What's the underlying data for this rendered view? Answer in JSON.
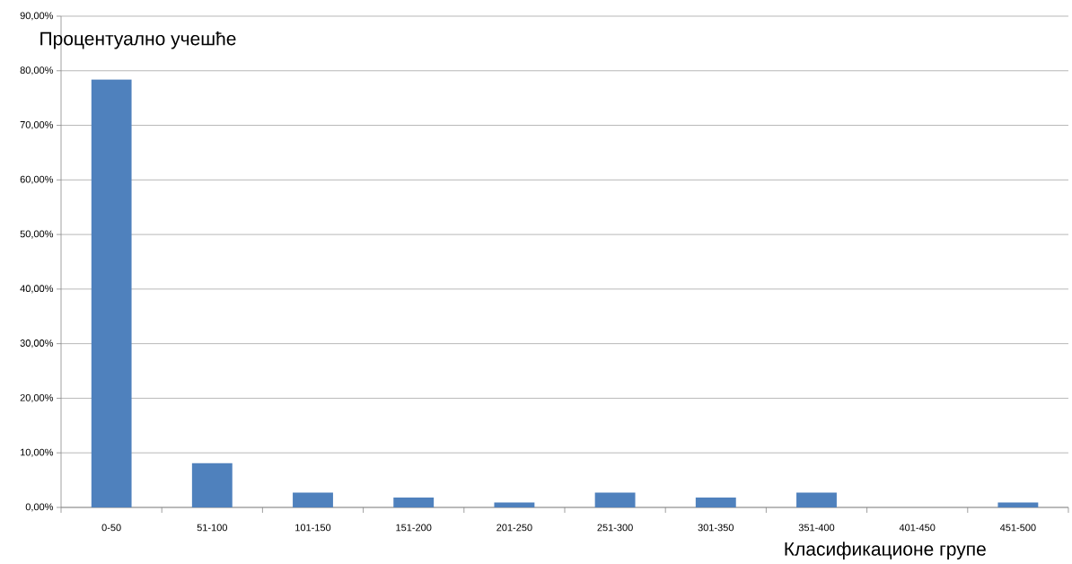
{
  "chart_data": {
    "type": "bar",
    "ylabel": "Процентуално учешће",
    "xlabel": "Класификационе групе",
    "categories": [
      "0-50",
      "51-100",
      "101-150",
      "151-200",
      "201-250",
      "251-300",
      "301-350",
      "351-400",
      "401-450",
      "451-500"
    ],
    "values": [
      78.4,
      8.1,
      2.7,
      1.8,
      0.9,
      2.7,
      1.8,
      2.7,
      0,
      0.9
    ],
    "color": "#4f81bd",
    "ylim": [
      0,
      90
    ],
    "yticks": [
      {
        "value": 0,
        "label": "0,00%"
      },
      {
        "value": 10,
        "label": "10,00%"
      },
      {
        "value": 20,
        "label": "20,00%"
      },
      {
        "value": 30,
        "label": "30,00%"
      },
      {
        "value": 40,
        "label": "40,00%"
      },
      {
        "value": 50,
        "label": "50,00%"
      },
      {
        "value": 60,
        "label": "60,00%"
      },
      {
        "value": 70,
        "label": "70,00%"
      },
      {
        "value": 80,
        "label": "80,00%"
      },
      {
        "value": 90,
        "label": "90,00%"
      }
    ],
    "grid": "y"
  }
}
